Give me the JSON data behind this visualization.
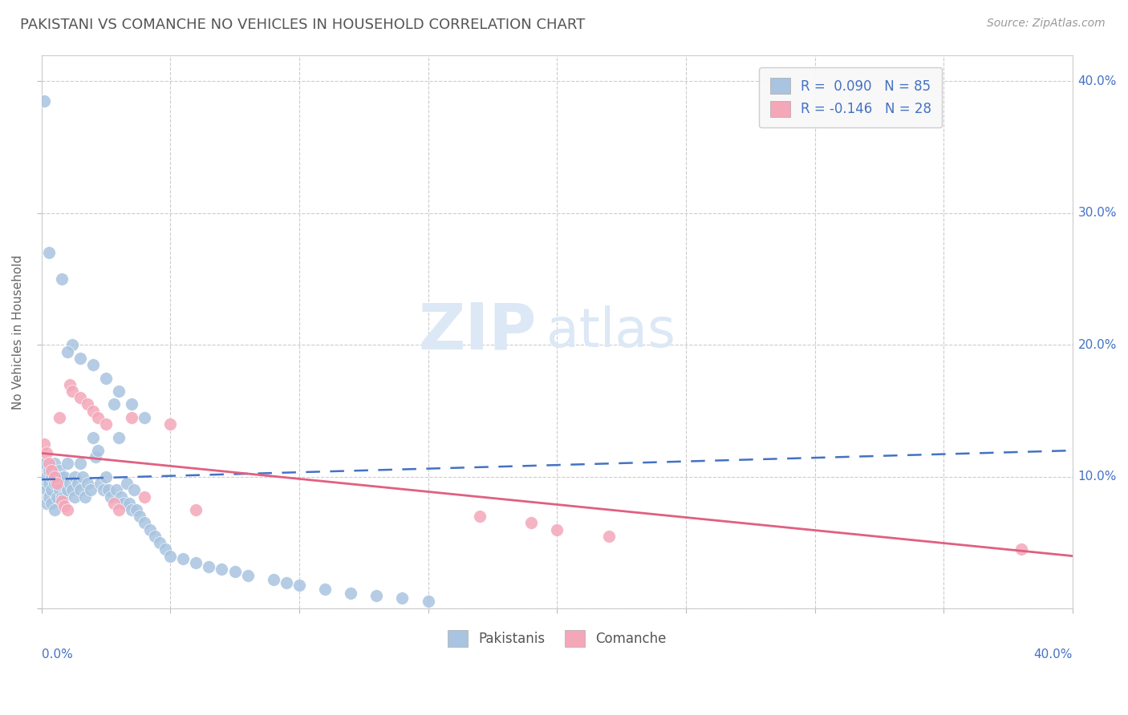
{
  "title": "PAKISTANI VS COMANCHE NO VEHICLES IN HOUSEHOLD CORRELATION CHART",
  "source": "Source: ZipAtlas.com",
  "ylabel": "No Vehicles in Household",
  "legend1_label": "R =  0.090   N = 85",
  "legend2_label": "R = -0.146   N = 28",
  "legend_bottom_label1": "Pakistanis",
  "legend_bottom_label2": "Comanche",
  "r_pakistani": 0.09,
  "n_pakistani": 85,
  "r_comanche": -0.146,
  "n_comanche": 28,
  "blue_color": "#a8c4e0",
  "blue_line_color": "#4472c4",
  "pink_color": "#f4a7b9",
  "pink_line_color": "#e06080",
  "watermark_zip": "ZIP",
  "watermark_atlas": "atlas",
  "xlim": [
    0.0,
    0.4
  ],
  "ylim": [
    0.0,
    0.42
  ],
  "pakistani_x": [
    0.001,
    0.001,
    0.001,
    0.002,
    0.002,
    0.002,
    0.003,
    0.003,
    0.003,
    0.004,
    0.004,
    0.004,
    0.005,
    0.005,
    0.005,
    0.006,
    0.006,
    0.007,
    0.007,
    0.008,
    0.008,
    0.009,
    0.009,
    0.01,
    0.01,
    0.011,
    0.012,
    0.012,
    0.013,
    0.013,
    0.014,
    0.015,
    0.015,
    0.016,
    0.017,
    0.018,
    0.019,
    0.02,
    0.021,
    0.022,
    0.023,
    0.024,
    0.025,
    0.026,
    0.027,
    0.028,
    0.029,
    0.03,
    0.031,
    0.032,
    0.033,
    0.034,
    0.035,
    0.036,
    0.037,
    0.038,
    0.04,
    0.042,
    0.044,
    0.046,
    0.048,
    0.05,
    0.055,
    0.06,
    0.065,
    0.07,
    0.075,
    0.08,
    0.09,
    0.095,
    0.1,
    0.11,
    0.12,
    0.13,
    0.14,
    0.15,
    0.003,
    0.008,
    0.01,
    0.015,
    0.02,
    0.025,
    0.03,
    0.035,
    0.04
  ],
  "pakistani_y": [
    0.385,
    0.11,
    0.095,
    0.1,
    0.09,
    0.08,
    0.105,
    0.095,
    0.085,
    0.1,
    0.09,
    0.08,
    0.11,
    0.095,
    0.075,
    0.1,
    0.085,
    0.105,
    0.09,
    0.1,
    0.085,
    0.1,
    0.085,
    0.11,
    0.09,
    0.095,
    0.2,
    0.09,
    0.1,
    0.085,
    0.095,
    0.11,
    0.09,
    0.1,
    0.085,
    0.095,
    0.09,
    0.13,
    0.115,
    0.12,
    0.095,
    0.09,
    0.1,
    0.09,
    0.085,
    0.155,
    0.09,
    0.13,
    0.085,
    0.08,
    0.095,
    0.08,
    0.075,
    0.09,
    0.075,
    0.07,
    0.065,
    0.06,
    0.055,
    0.05,
    0.045,
    0.04,
    0.038,
    0.035,
    0.032,
    0.03,
    0.028,
    0.025,
    0.022,
    0.02,
    0.018,
    0.015,
    0.012,
    0.01,
    0.008,
    0.006,
    0.27,
    0.25,
    0.195,
    0.19,
    0.185,
    0.175,
    0.165,
    0.155,
    0.145
  ],
  "comanche_x": [
    0.001,
    0.002,
    0.003,
    0.004,
    0.005,
    0.006,
    0.007,
    0.008,
    0.009,
    0.01,
    0.011,
    0.012,
    0.015,
    0.018,
    0.02,
    0.022,
    0.025,
    0.028,
    0.03,
    0.035,
    0.05,
    0.06,
    0.17,
    0.19,
    0.2,
    0.22,
    0.38,
    0.04
  ],
  "comanche_y": [
    0.125,
    0.118,
    0.11,
    0.105,
    0.1,
    0.095,
    0.145,
    0.082,
    0.078,
    0.075,
    0.17,
    0.165,
    0.16,
    0.155,
    0.15,
    0.145,
    0.14,
    0.08,
    0.075,
    0.145,
    0.14,
    0.075,
    0.07,
    0.065,
    0.06,
    0.055,
    0.045,
    0.085
  ],
  "pak_trend_y0": 0.098,
  "pak_trend_y1": 0.12,
  "com_trend_y0": 0.118,
  "com_trend_y1": 0.04
}
